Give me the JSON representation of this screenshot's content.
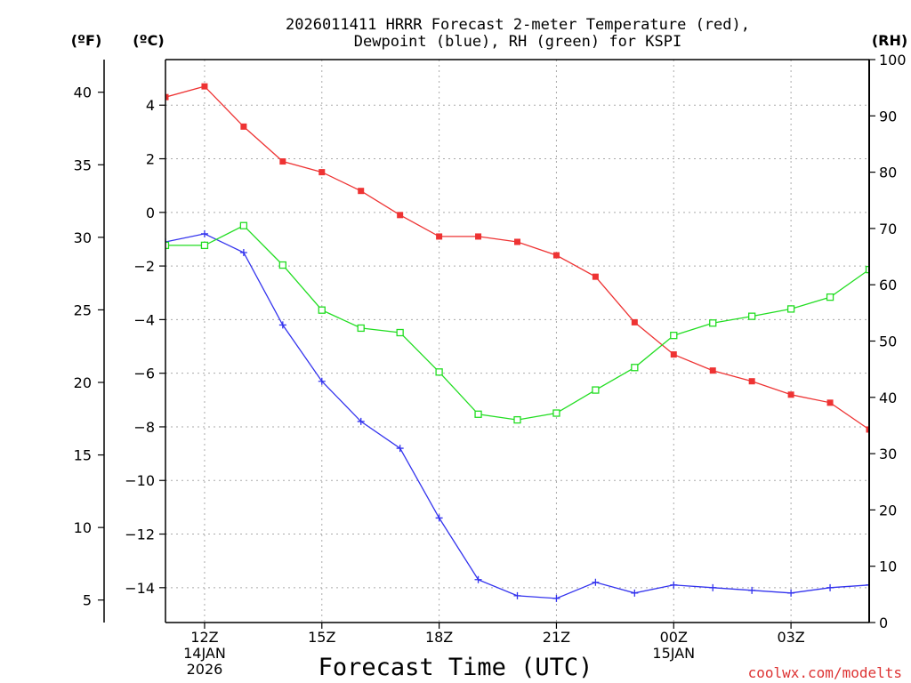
{
  "chart_data": {
    "type": "line",
    "title": [
      "2026011411 HRRR Forecast 2-meter Temperature (red),",
      "Dewpoint (blue), RH (green) for KSPI"
    ],
    "xlabel": "Forecast Time (UTC)",
    "units": {
      "fahrenheit": "(ºF)",
      "celsius": "(ºC)",
      "rh": "(RH)"
    },
    "credit": "coolwx.com/modelts",
    "x_hours": [
      11,
      12,
      13,
      14,
      15,
      16,
      17,
      18,
      19,
      20,
      21,
      22,
      23,
      24,
      25,
      26,
      27,
      28,
      29
    ],
    "xlim": [
      11,
      29
    ],
    "x_ticks": [
      {
        "hour": 12,
        "lines": [
          "12Z",
          "14JAN",
          "2026"
        ]
      },
      {
        "hour": 15,
        "lines": [
          "15Z"
        ]
      },
      {
        "hour": 18,
        "lines": [
          "18Z"
        ]
      },
      {
        "hour": 21,
        "lines": [
          "21Z"
        ]
      },
      {
        "hour": 24,
        "lines": [
          "00Z",
          "15JAN"
        ]
      },
      {
        "hour": 27,
        "lines": [
          "03Z"
        ]
      }
    ],
    "celsius_axis": {
      "ylim": [
        -15.3,
        5.7
      ],
      "ticks": [
        4,
        2,
        0,
        -2,
        -4,
        -6,
        -8,
        -10,
        -12,
        -14
      ]
    },
    "fahrenheit_axis": {
      "ylim": [
        3.45,
        42.25
      ],
      "ticks": [
        40,
        35,
        30,
        25,
        20,
        15,
        10,
        5
      ]
    },
    "rh_axis": {
      "ylim": [
        0,
        100
      ],
      "ticks": [
        100,
        90,
        80,
        70,
        60,
        50,
        40,
        30,
        20,
        10,
        0
      ]
    },
    "series": [
      {
        "name": "Temperature",
        "units": "C",
        "color": "#ee3333",
        "marker": "filled-square",
        "values": [
          4.3,
          4.7,
          3.2,
          1.9,
          1.5,
          0.8,
          -0.1,
          -0.9,
          -0.9,
          -1.1,
          -1.6,
          -2.4,
          -4.1,
          -5.3,
          -5.9,
          -6.3,
          -6.8,
          -7.1,
          -8.1
        ]
      },
      {
        "name": "Dewpoint",
        "units": "C",
        "color": "#3333ee",
        "marker": "plus",
        "values": [
          -1.1,
          -0.8,
          -1.5,
          -4.2,
          -6.3,
          -7.8,
          -8.8,
          -11.4,
          -13.7,
          -14.3,
          -14.4,
          -13.8,
          -14.2,
          -13.9,
          -14.0,
          -14.1,
          -14.2,
          -14.0,
          -13.9
        ]
      },
      {
        "name": "RH",
        "units": "%",
        "color": "#22dd22",
        "marker": "open-square",
        "values": [
          67.0,
          67.0,
          70.5,
          63.5,
          55.5,
          52.3,
          51.5,
          44.5,
          37.0,
          36.0,
          37.2,
          41.3,
          45.3,
          51.0,
          53.2,
          54.4,
          55.7,
          57.8,
          62.7
        ]
      }
    ]
  }
}
